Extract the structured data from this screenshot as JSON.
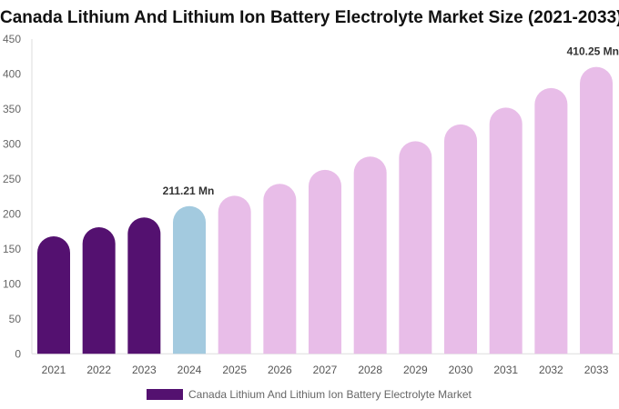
{
  "chart_data": {
    "type": "bar",
    "title": "Canada Lithium And Lithium Ion Battery Electrolyte Market Size (2021-2033)",
    "categories": [
      "2021",
      "2022",
      "2023",
      "2024",
      "2025",
      "2026",
      "2027",
      "2028",
      "2029",
      "2030",
      "2031",
      "2032",
      "2033"
    ],
    "series": [
      {
        "name": "Canada Lithium And Lithium Ion Battery Electrolyte Market",
        "values": [
          168,
          181,
          195,
          211.21,
          226,
          243,
          263,
          282,
          304,
          328,
          352,
          380,
          410.25
        ]
      }
    ],
    "bar_colors": [
      "#541170",
      "#541170",
      "#541170",
      "#a3cadf",
      "#e8bde8",
      "#e8bde8",
      "#e8bde8",
      "#e8bde8",
      "#e8bde8",
      "#e8bde8",
      "#e8bde8",
      "#e8bde8",
      "#e8bde8"
    ],
    "legend_color": "#541170",
    "data_labels": [
      {
        "category": "2024",
        "text": "211.21 Mn"
      },
      {
        "category": "2033",
        "text": "410.25 Mn"
      }
    ],
    "ylim": [
      0,
      450
    ],
    "yticks": [
      0,
      50,
      100,
      150,
      200,
      250,
      300,
      350,
      400,
      450
    ],
    "grid": false,
    "legend_position": "bottom",
    "xlabel": "",
    "ylabel": ""
  }
}
